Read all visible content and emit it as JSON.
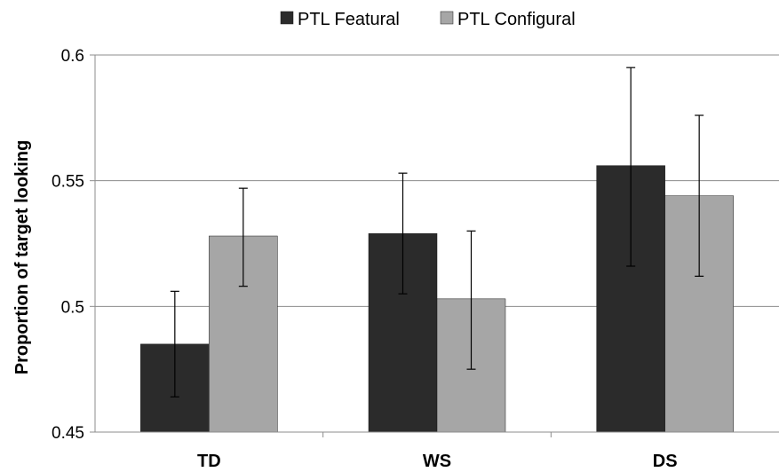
{
  "chart_data": {
    "type": "bar",
    "title": "",
    "xlabel": "",
    "ylabel": "Proportion of target looking",
    "categories": [
      "TD",
      "WS",
      "DS"
    ],
    "ylim": [
      0.45,
      0.6
    ],
    "yticks": [
      0.45,
      0.5,
      0.55,
      0.6
    ],
    "ytick_labels": [
      "0.45",
      "0.5",
      "0.55",
      "0.6"
    ],
    "grid": "horizontal",
    "legend_position": "top",
    "series": [
      {
        "name": "PTL Featural",
        "color": "#2b2b2b",
        "values": [
          0.485,
          0.529,
          0.556
        ],
        "error_low": [
          0.464,
          0.505,
          0.516
        ],
        "error_high": [
          0.506,
          0.553,
          0.595
        ]
      },
      {
        "name": "PTL Configural",
        "color": "#a6a6a6",
        "values": [
          0.528,
          0.503,
          0.544
        ],
        "error_low": [
          0.508,
          0.475,
          0.512
        ],
        "error_high": [
          0.547,
          0.53,
          0.576
        ]
      }
    ]
  }
}
